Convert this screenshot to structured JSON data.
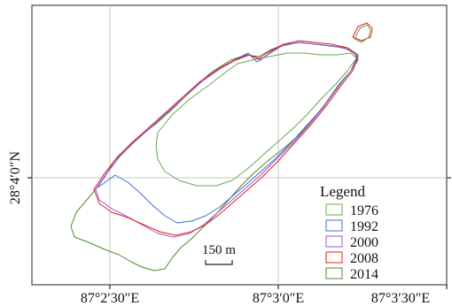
{
  "map": {
    "latitude_labels": [
      "28°4′0″N"
    ],
    "longitude_labels": [
      "87°2′30″E",
      "87°3′0″E",
      "87°3′30″E"
    ],
    "scale_bar_label": "150 m",
    "legend": {
      "title": "Legend",
      "items": [
        {
          "label": "1976",
          "color": "#6aa84f"
        },
        {
          "label": "1992",
          "color": "#3d6fd6"
        },
        {
          "label": "2000",
          "color": "#9b59c9"
        },
        {
          "label": "2008",
          "color": "#e02020"
        },
        {
          "label": "2014",
          "color": "#4f8a2a"
        }
      ]
    }
  }
}
